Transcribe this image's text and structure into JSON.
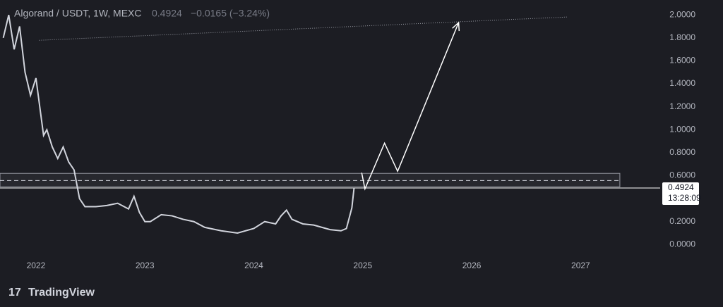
{
  "chart_data": {
    "type": "line",
    "title": "Algorand / USDT, 1W, MEXC",
    "last_price": 0.4924,
    "change_label": "−0.0165 (−3.24%)",
    "countdown": "13:28:09",
    "brand": "TradingView",
    "color": "#d1d4dc",
    "x": [
      2021.7,
      2021.75,
      2021.8,
      2021.85,
      2021.9,
      2021.95,
      2022.0,
      2022.07,
      2022.1,
      2022.15,
      2022.2,
      2022.25,
      2022.3,
      2022.35,
      2022.4,
      2022.45,
      2022.55,
      2022.65,
      2022.75,
      2022.85,
      2022.9,
      2022.95,
      2023.0,
      2023.05,
      2023.15,
      2023.25,
      2023.35,
      2023.45,
      2023.55,
      2023.7,
      2023.85,
      2024.0,
      2024.1,
      2024.2,
      2024.25,
      2024.3,
      2024.35,
      2024.45,
      2024.55,
      2024.7,
      2024.8,
      2024.85,
      2024.9,
      2024.92
    ],
    "values": [
      1.8,
      2.0,
      1.7,
      1.9,
      1.5,
      1.3,
      1.45,
      0.95,
      1.0,
      0.85,
      0.75,
      0.85,
      0.72,
      0.65,
      0.4,
      0.33,
      0.33,
      0.34,
      0.36,
      0.31,
      0.42,
      0.28,
      0.2,
      0.2,
      0.26,
      0.25,
      0.22,
      0.2,
      0.15,
      0.12,
      0.1,
      0.14,
      0.2,
      0.18,
      0.25,
      0.3,
      0.22,
      0.18,
      0.17,
      0.13,
      0.12,
      0.14,
      0.32,
      0.4924
    ],
    "trendline": {
      "x": [
        2022.03,
        2026.88
      ],
      "values": [
        1.779,
        1.982
      ]
    },
    "projection": {
      "x": [
        2024.99,
        2025.02,
        2025.2,
        2025.32,
        2025.88
      ],
      "values": [
        0.626,
        0.485,
        0.883,
        0.638,
        1.933
      ]
    },
    "zone": [
      0.503,
      0.62
    ],
    "zone_x": [
      2021.67,
      2027.36
    ],
    "zone_mid": 0.558,
    "xlim": [
      2021.67,
      2027.73
    ],
    "ylim": [
      -0.09,
      2.13
    ],
    "xticks": [
      2022,
      2023,
      2024,
      2025,
      2026,
      2027
    ],
    "yticks": [
      {
        "value": 0,
        "label": "0.0000"
      },
      {
        "value": 0.2,
        "label": "0.2000"
      },
      {
        "value": 0.4,
        "label": "0.4000"
      },
      {
        "value": 0.6,
        "label": "0.6000"
      },
      {
        "value": 0.8,
        "label": "0.8000"
      },
      {
        "value": 1.0,
        "label": "1.0000"
      },
      {
        "value": 1.2,
        "label": "1.2000"
      },
      {
        "value": 1.4,
        "label": "1.4000"
      },
      {
        "value": 1.6,
        "label": "1.6000"
      },
      {
        "value": 1.8,
        "label": "1.8000"
      },
      {
        "value": 2.0,
        "label": "2.0000"
      }
    ]
  }
}
